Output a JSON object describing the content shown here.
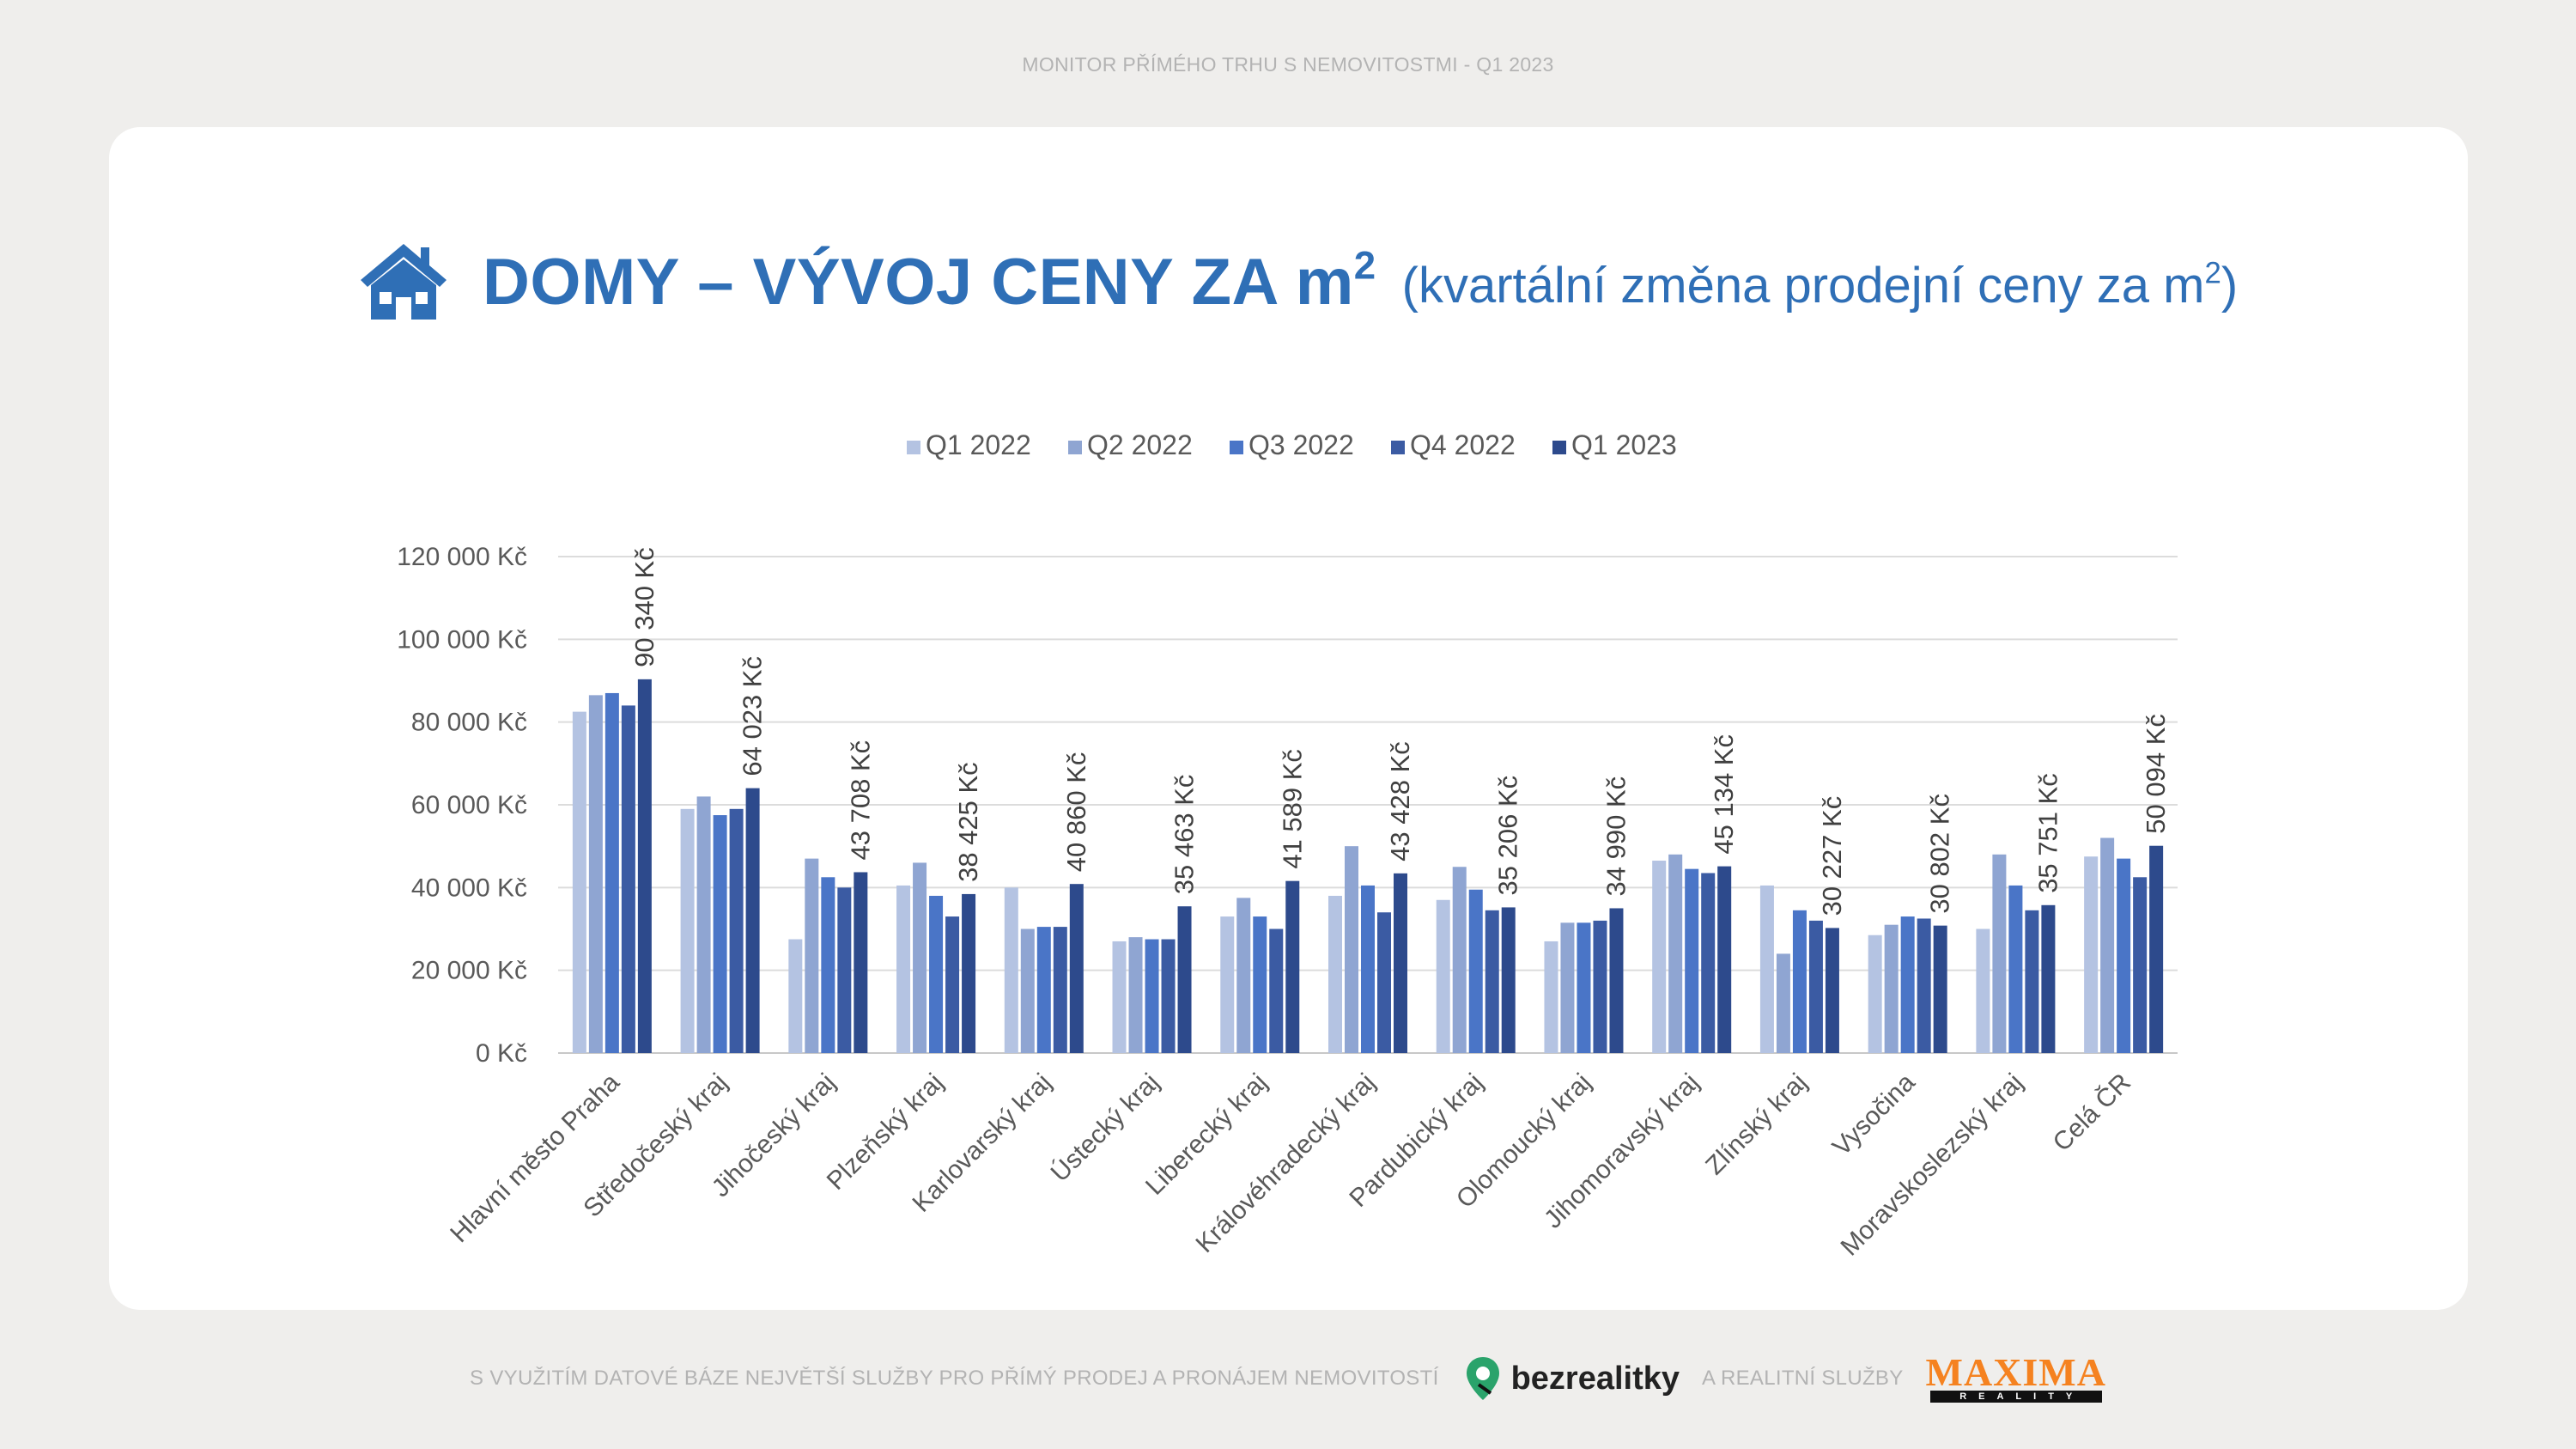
{
  "header": {
    "text": "MONITOR PŘÍMÉHO TRHU S NEMOVITOSTMI - Q1 2023"
  },
  "title": {
    "icon": "house-icon",
    "main": "DOMY – VÝVOJ CENY ZA m",
    "main_sup": "2",
    "sub_before": "(kvartální změna prodejní ceny za m",
    "sub_sup": "2",
    "sub_after": ")"
  },
  "colors": {
    "title": "#2f6fb6",
    "series": [
      "#b4c3e2",
      "#8fa5d2",
      "#4a75c7",
      "#3b5ba3",
      "#2d4a8c"
    ]
  },
  "chart_data": {
    "type": "bar",
    "categories": [
      "Hlavní město Praha",
      "Středočeský kraj",
      "Jihočeský kraj",
      "Plzeňský kraj",
      "Karlovarský kraj",
      "Ústecký kraj",
      "Liberecký kraj",
      "Královéhradecký kraj",
      "Pardubický kraj",
      "Olomoucký kraj",
      "Jihomoravský kraj",
      "Zlínský kraj",
      "Vysočina",
      "Moravskoslezský kraj",
      "Celá ČR"
    ],
    "series": [
      {
        "name": "Q1 2022",
        "values": [
          82500,
          59000,
          27500,
          40500,
          40000,
          27000,
          33000,
          38000,
          37000,
          27000,
          46500,
          40500,
          28500,
          30000,
          47500
        ]
      },
      {
        "name": "Q2 2022",
        "values": [
          86500,
          62000,
          47000,
          46000,
          30000,
          28000,
          37500,
          50000,
          45000,
          31500,
          48000,
          24000,
          31000,
          48000,
          52000
        ]
      },
      {
        "name": "Q3 2022",
        "values": [
          87000,
          57500,
          42500,
          38000,
          30500,
          27500,
          33000,
          40500,
          39500,
          31500,
          44500,
          34500,
          33000,
          40500,
          47000
        ]
      },
      {
        "name": "Q4 2022",
        "values": [
          84000,
          59000,
          40000,
          33000,
          30500,
          27500,
          30000,
          34000,
          34500,
          32000,
          43500,
          32000,
          32500,
          34500,
          42500
        ]
      },
      {
        "name": "Q1 2023",
        "values": [
          90340,
          64023,
          43708,
          38425,
          40860,
          35463,
          41589,
          43428,
          35206,
          34990,
          45134,
          30227,
          30802,
          35751,
          50094
        ]
      }
    ],
    "data_labels": [
      "90 340 Kč",
      "64 023 Kč",
      "43 708 Kč",
      "38 425 Kč",
      "40 860 Kč",
      "35 463 Kč",
      "41 589 Kč",
      "43 428 Kč",
      "35 206 Kč",
      "34 990 Kč",
      "45 134 Kč",
      "30 227 Kč",
      "30 802 Kč",
      "35 751 Kč",
      "50 094 Kč"
    ],
    "y_ticks": [
      0,
      20000,
      40000,
      60000,
      80000,
      100000,
      120000
    ],
    "y_tick_labels": [
      "0 Kč",
      "20 000 Kč",
      "40 000 Kč",
      "60 000 Kč",
      "80 000 Kč",
      "100 000 Kč",
      "120 000 Kč"
    ],
    "ylim": [
      0,
      120000
    ],
    "grid": true,
    "legend_position": "top-center",
    "xlabel": "",
    "ylabel": ""
  },
  "footer": {
    "text_left": "S VYUŽITÍM DATOVÉ BÁZE NEJVĚTŠÍ SLUŽBY PRO PŘÍMÝ PRODEJ A PRONÁJEM NEMOVITOSTÍ",
    "brand1": "bezrealitky",
    "brand1_icon": "location-pin-icon",
    "text_mid": "A REALITNÍ SLUŽBY",
    "brand2": "MAXIMA",
    "brand2_sub": "REALITY"
  }
}
